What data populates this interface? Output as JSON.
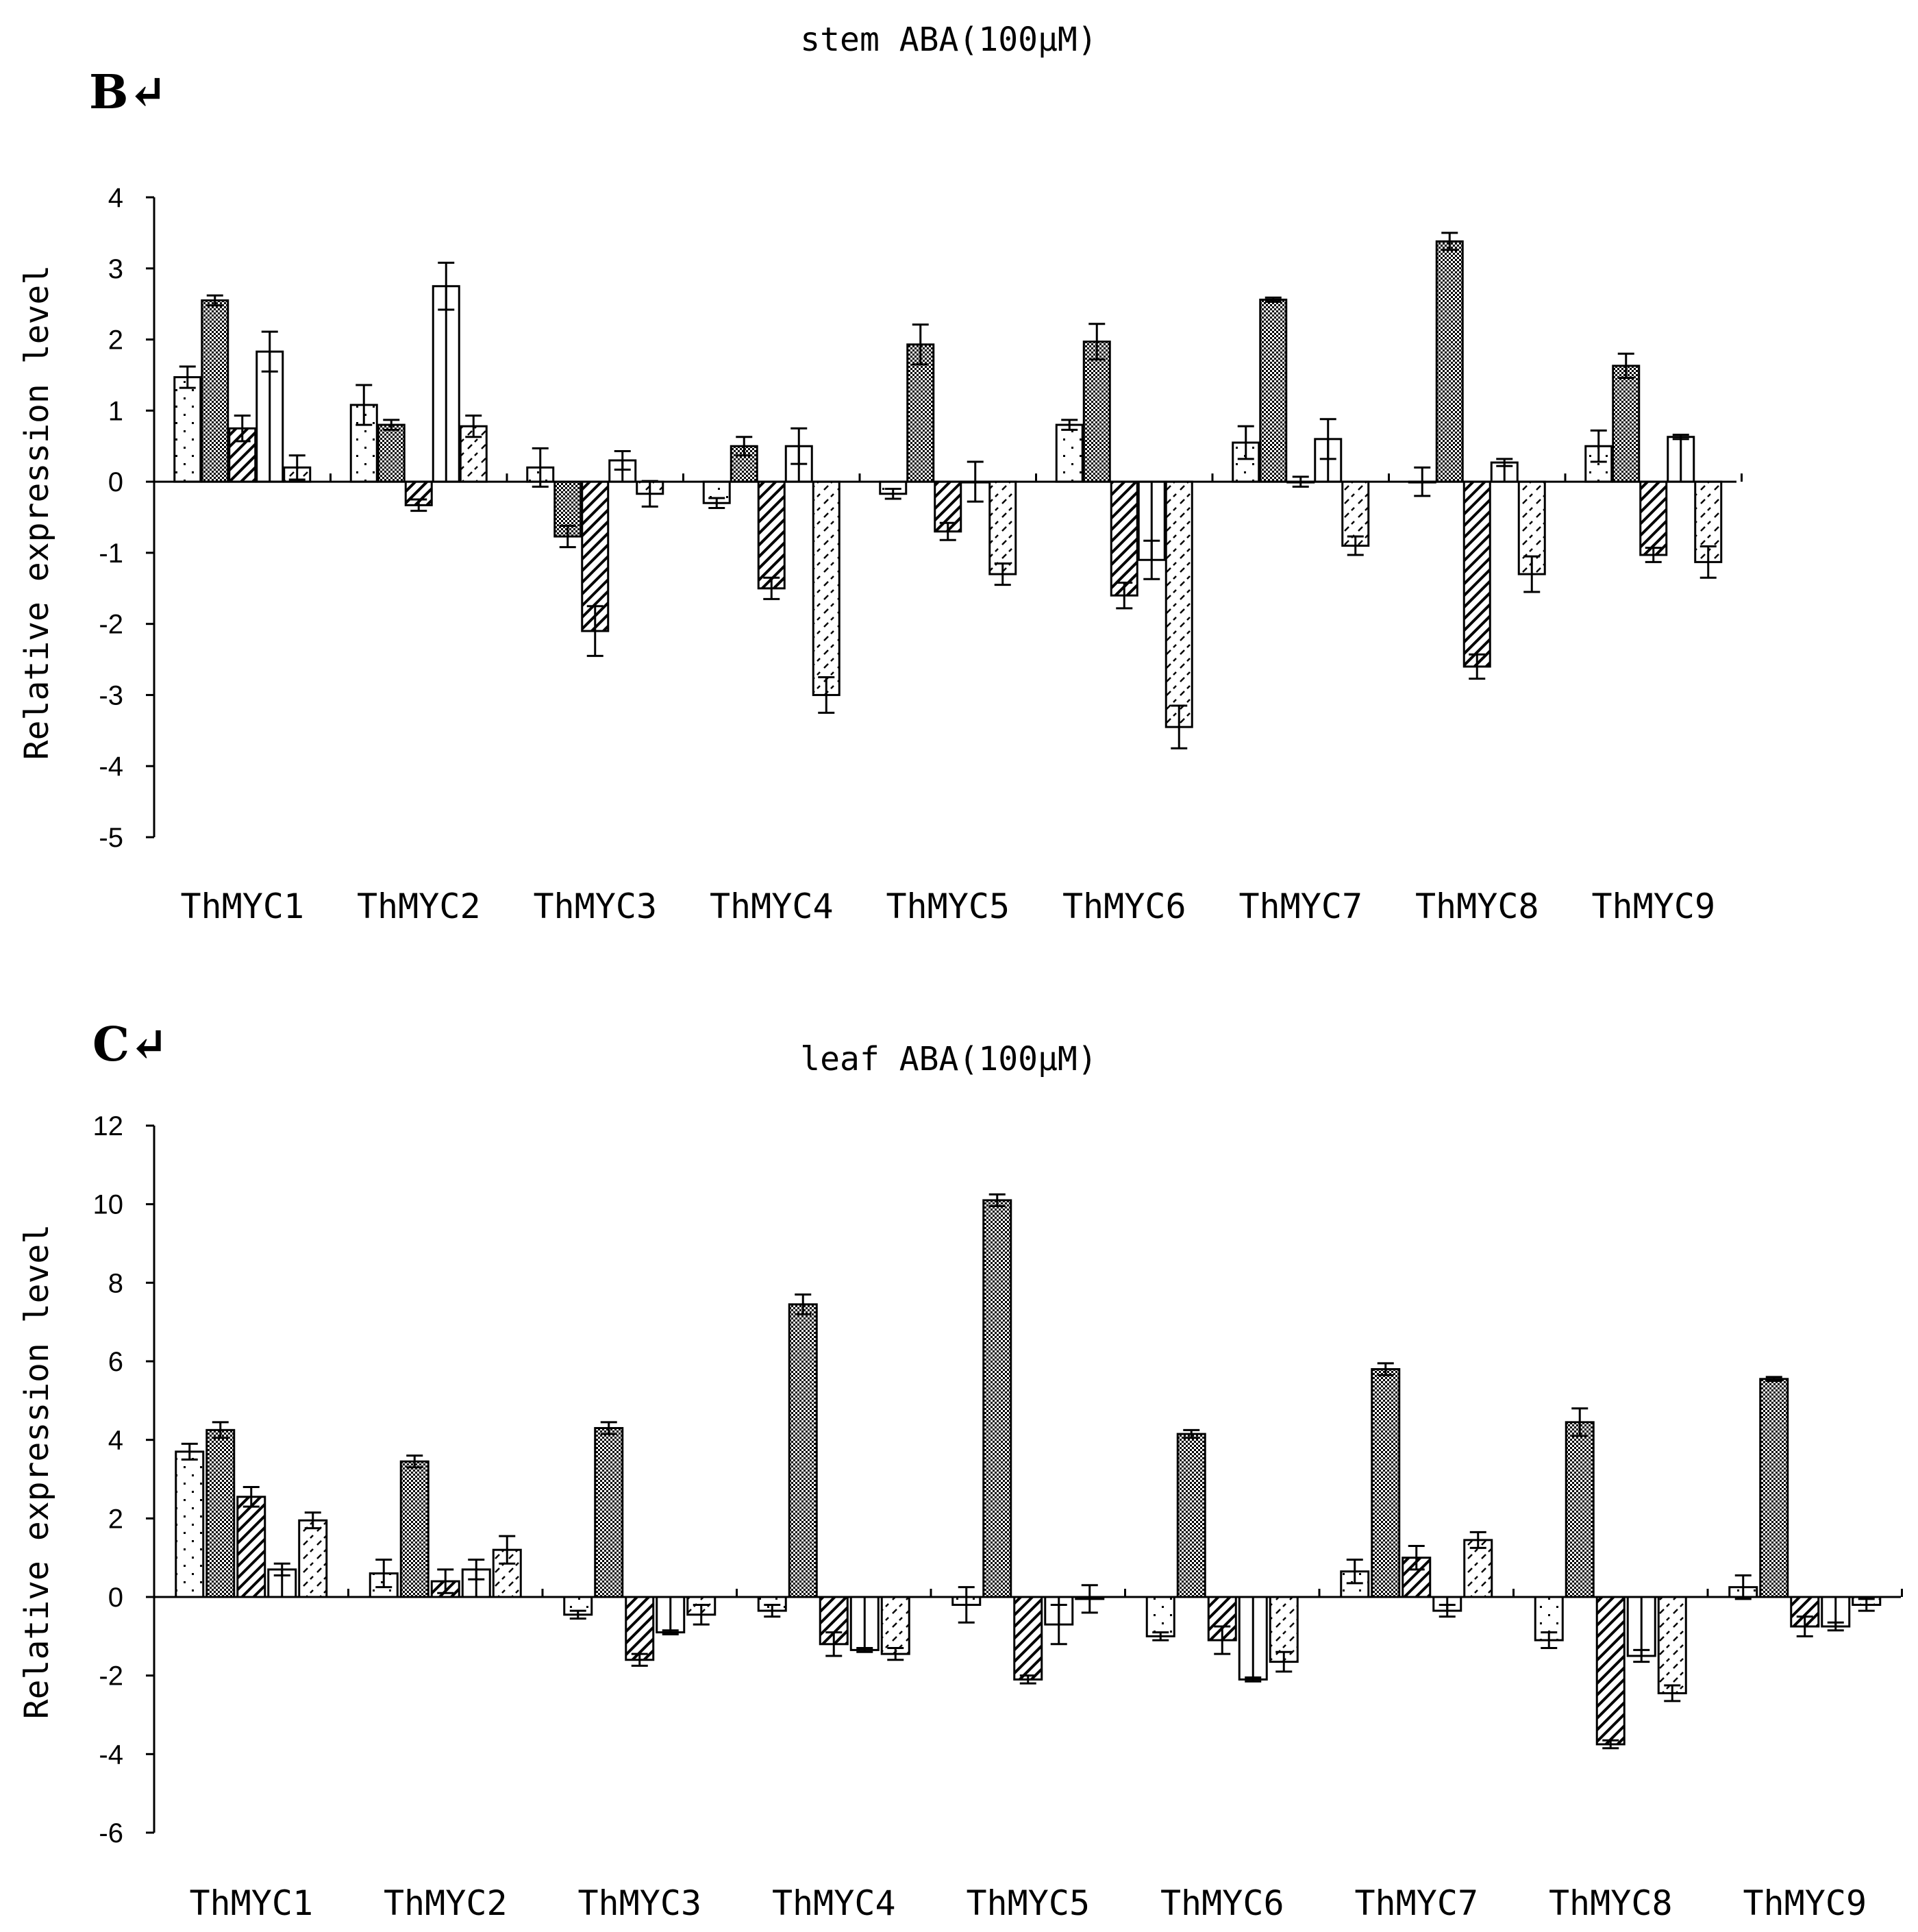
{
  "chart_data": [
    {
      "type": "bar",
      "panel_label": "B↵",
      "title": "stem ABA(100μM)",
      "ylabel": "Relative expression level",
      "xlabel": "",
      "ylim": [
        -5,
        4
      ],
      "yticks": [
        4,
        3,
        2,
        1,
        0,
        -1,
        -2,
        -3,
        -4,
        -5
      ],
      "categories": [
        "ThMYC1",
        "ThMYC2",
        "ThMYC3",
        "ThMYC4",
        "ThMYC5",
        "ThMYC6",
        "ThMYC7",
        "ThMYC8",
        "ThMYC9"
      ],
      "grid": false,
      "series": [
        {
          "pattern": "dots",
          "values": [
            1.47,
            1.08,
            0.2,
            -0.3,
            -0.17,
            0.8,
            0.55,
            0.0,
            0.5
          ],
          "errors": [
            0.15,
            0.28,
            0.27,
            0.07,
            0.07,
            0.07,
            0.23,
            0.2,
            0.22
          ]
        },
        {
          "pattern": "dense",
          "values": [
            2.55,
            0.8,
            -0.77,
            0.5,
            1.93,
            1.97,
            2.56,
            3.38,
            1.63
          ],
          "errors": [
            0.07,
            0.07,
            0.15,
            0.13,
            0.28,
            0.25,
            0.03,
            0.12,
            0.17
          ]
        },
        {
          "pattern": "diag",
          "values": [
            0.75,
            -0.33,
            -2.1,
            -1.5,
            -0.7,
            -1.6,
            0.0,
            -2.6,
            -1.03
          ],
          "errors": [
            0.18,
            0.08,
            0.35,
            0.15,
            0.12,
            0.18,
            0.07,
            0.17,
            0.1
          ]
        },
        {
          "pattern": "vlines",
          "values": [
            1.83,
            2.75,
            0.3,
            0.5,
            0.0,
            -1.1,
            0.6,
            0.27,
            0.63
          ],
          "errors": [
            0.28,
            0.33,
            0.13,
            0.25,
            0.28,
            0.27,
            0.28,
            0.05,
            0.03
          ]
        },
        {
          "pattern": "dashes",
          "values": [
            0.2,
            0.78,
            -0.17,
            -3.0,
            -1.3,
            -3.45,
            -0.9,
            -1.3,
            -1.13
          ],
          "errors": [
            0.17,
            0.15,
            0.18,
            0.25,
            0.15,
            0.3,
            0.13,
            0.25,
            0.22
          ]
        }
      ]
    },
    {
      "type": "bar",
      "panel_label": "C↵",
      "title": "leaf ABA(100μM)",
      "ylabel": "Relative expression level",
      "xlabel": "",
      "ylim": [
        -6,
        12
      ],
      "yticks": [
        12,
        10,
        8,
        6,
        4,
        2,
        0,
        -2,
        -4,
        -6
      ],
      "categories": [
        "ThMYC1",
        "ThMYC2",
        "ThMYC3",
        "ThMYC4",
        "ThMYC5",
        "ThMYC6",
        "ThMYC7",
        "ThMYC8",
        "ThMYC9"
      ],
      "grid": false,
      "series": [
        {
          "pattern": "dots",
          "values": [
            3.7,
            0.6,
            -0.45,
            -0.35,
            -0.2,
            -1.0,
            0.65,
            -1.1,
            0.25
          ],
          "errors": [
            0.2,
            0.35,
            0.1,
            0.15,
            0.45,
            0.1,
            0.3,
            0.2,
            0.3
          ]
        },
        {
          "pattern": "dense",
          "values": [
            4.25,
            3.45,
            4.3,
            7.45,
            10.1,
            4.15,
            5.8,
            4.45,
            5.55
          ],
          "errors": [
            0.2,
            0.15,
            0.15,
            0.25,
            0.15,
            0.1,
            0.15,
            0.35,
            0.05
          ]
        },
        {
          "pattern": "diag",
          "values": [
            2.55,
            0.4,
            -1.6,
            -1.2,
            -2.1,
            -1.1,
            1.0,
            -3.75,
            -0.75
          ],
          "errors": [
            0.25,
            0.3,
            0.15,
            0.3,
            0.1,
            0.35,
            0.3,
            0.1,
            0.25
          ]
        },
        {
          "pattern": "vlines",
          "values": [
            0.7,
            0.7,
            -0.9,
            -1.35,
            -0.7,
            -2.1,
            -0.35,
            -1.5,
            -0.75
          ],
          "errors": [
            0.15,
            0.25,
            0.05,
            0.05,
            0.5,
            0.05,
            0.15,
            0.15,
            0.1
          ]
        },
        {
          "pattern": "dashes",
          "values": [
            1.95,
            1.2,
            -0.45,
            -1.45,
            -0.05,
            -1.65,
            1.45,
            -2.45,
            -0.2
          ],
          "errors": [
            0.2,
            0.35,
            0.25,
            0.15,
            0.35,
            0.25,
            0.2,
            0.2,
            0.15
          ]
        }
      ]
    }
  ]
}
